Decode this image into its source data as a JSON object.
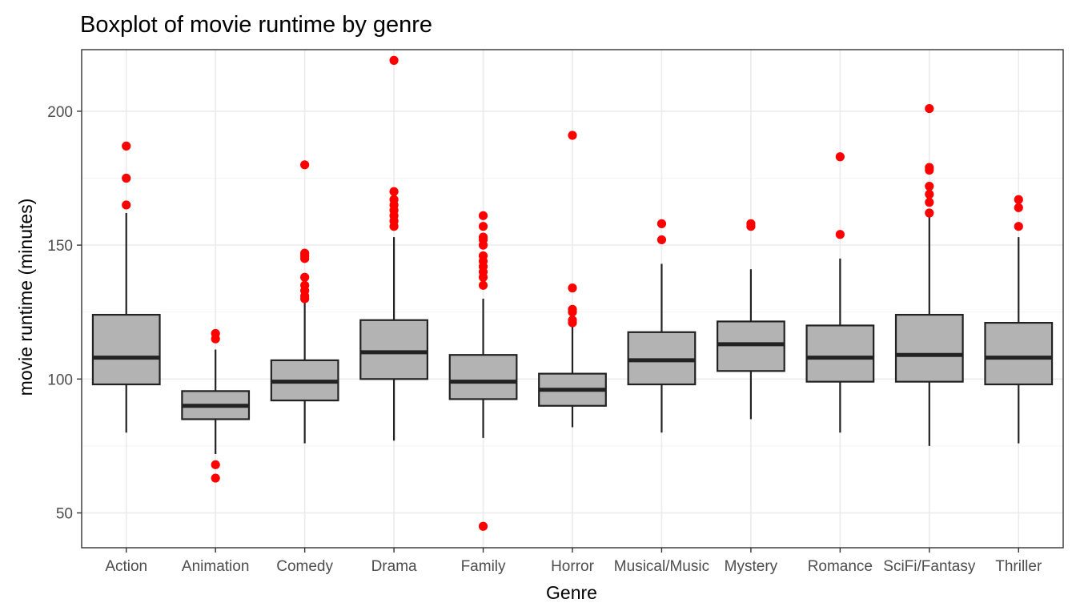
{
  "chart_data": {
    "type": "boxplot",
    "title": "Boxplot of movie runtime by genre",
    "xlabel": "Genre",
    "ylabel": "movie runtime (minutes)",
    "ylim": [
      37,
      223
    ],
    "yticks": [
      50,
      100,
      150,
      200
    ],
    "grid": true,
    "colors": {
      "box_fill": "#b3b3b3",
      "box_line": "#222222",
      "outlier": "#ff0000"
    },
    "categories": [
      "Action",
      "Animation",
      "Comedy",
      "Drama",
      "Family",
      "Horror",
      "Musical/Music",
      "Mystery",
      "Romance",
      "SciFi/Fantasy",
      "Thriller"
    ],
    "boxes": [
      {
        "category": "Action",
        "whisker_low": 80,
        "q1": 98,
        "median": 108,
        "q3": 124,
        "whisker_high": 162,
        "outliers": [
          165,
          175,
          187
        ]
      },
      {
        "category": "Animation",
        "whisker_low": 72,
        "q1": 85,
        "median": 90,
        "q3": 95.5,
        "whisker_high": 111,
        "outliers": [
          63,
          68,
          115,
          117
        ]
      },
      {
        "category": "Comedy",
        "whisker_low": 76,
        "q1": 92,
        "median": 99,
        "q3": 107,
        "whisker_high": 129,
        "outliers": [
          130,
          131,
          133,
          135,
          138,
          145,
          146,
          147,
          180
        ]
      },
      {
        "category": "Drama",
        "whisker_low": 77,
        "q1": 100,
        "median": 110,
        "q3": 122,
        "whisker_high": 153,
        "outliers": [
          157,
          159,
          161,
          163,
          165,
          167,
          170,
          219
        ]
      },
      {
        "category": "Family",
        "whisker_low": 78,
        "q1": 92.5,
        "median": 99,
        "q3": 109,
        "whisker_high": 130,
        "outliers": [
          45,
          135,
          138,
          140,
          142,
          144,
          146,
          150,
          152,
          153,
          157,
          161
        ]
      },
      {
        "category": "Horror",
        "whisker_low": 82,
        "q1": 90,
        "median": 96,
        "q3": 102,
        "whisker_high": 120,
        "outliers": [
          121,
          122,
          125,
          126,
          134,
          191
        ]
      },
      {
        "category": "Musical/Music",
        "whisker_low": 80,
        "q1": 98,
        "median": 107,
        "q3": 117.5,
        "whisker_high": 143,
        "outliers": [
          152,
          158
        ]
      },
      {
        "category": "Mystery",
        "whisker_low": 85,
        "q1": 103,
        "median": 113,
        "q3": 121.5,
        "whisker_high": 141,
        "outliers": [
          157,
          158
        ]
      },
      {
        "category": "Romance",
        "whisker_low": 80,
        "q1": 99,
        "median": 108,
        "q3": 120,
        "whisker_high": 145,
        "outliers": [
          154,
          183
        ]
      },
      {
        "category": "SciFi/Fantasy",
        "whisker_low": 75,
        "q1": 99,
        "median": 109,
        "q3": 124,
        "whisker_high": 161,
        "outliers": [
          162,
          166,
          169,
          172,
          178,
          179,
          201
        ]
      },
      {
        "category": "Thriller",
        "whisker_low": 76,
        "q1": 98,
        "median": 108,
        "q3": 121,
        "whisker_high": 153,
        "outliers": [
          157,
          164,
          167
        ]
      }
    ]
  }
}
